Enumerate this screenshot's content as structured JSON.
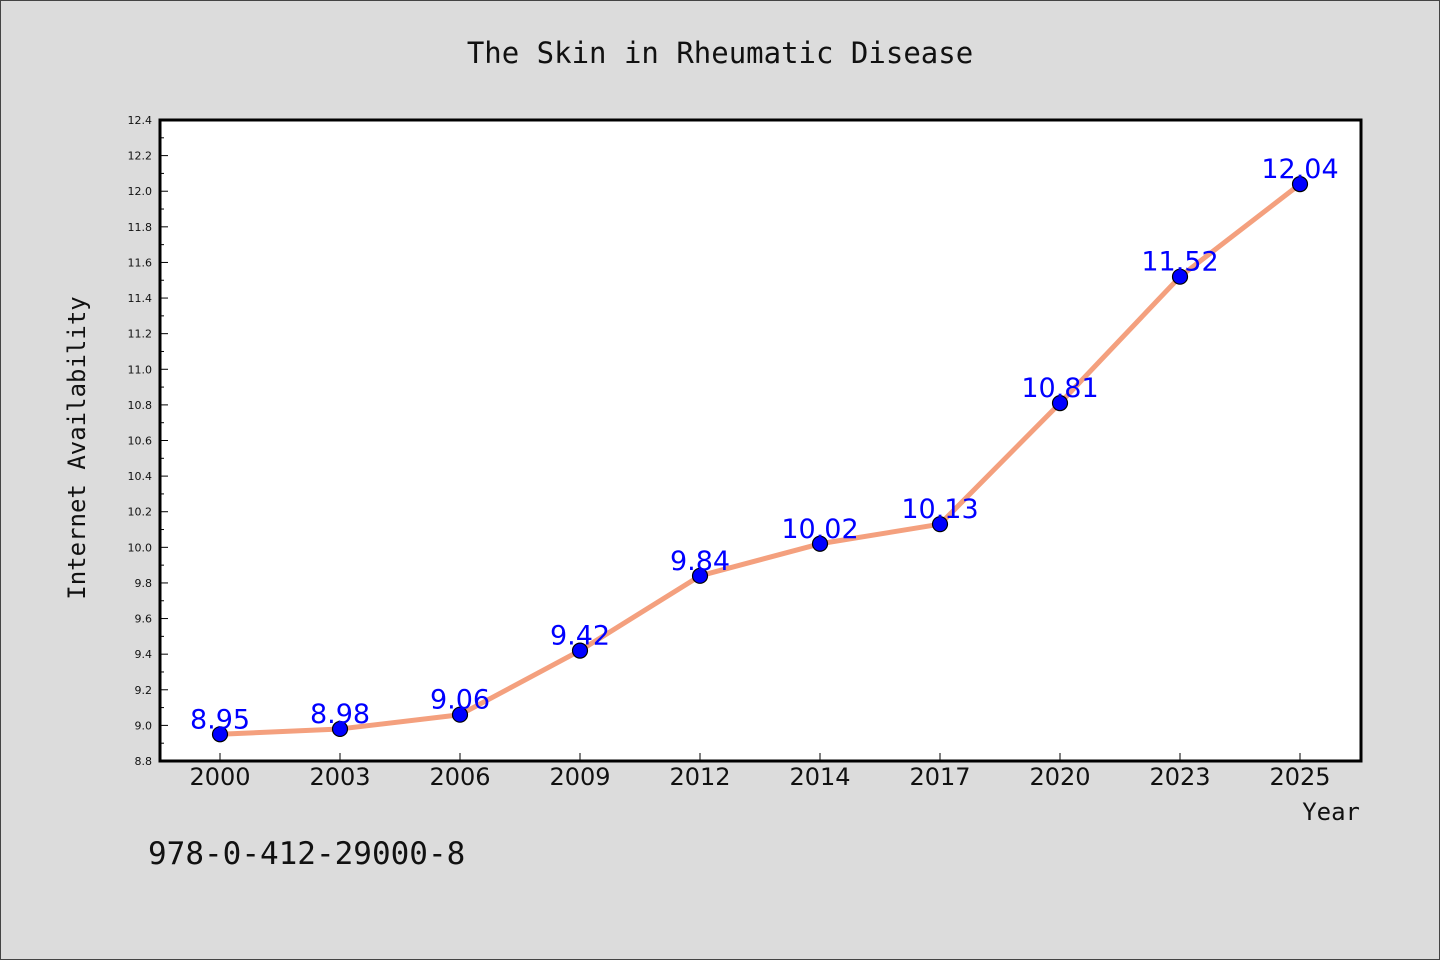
{
  "colors": {
    "background": "#dcdcdc",
    "plot_background": "#ffffff",
    "line": "#f4a07e",
    "marker": "#0000ff",
    "data_label": "#0000ff"
  },
  "footnote": "978-0-412-29000-8",
  "chart_data": {
    "type": "line",
    "title": "The Skin in Rheumatic Disease",
    "xlabel": "Year",
    "ylabel": "Internet Availability",
    "categories": [
      "2000",
      "2003",
      "2006",
      "2009",
      "2012",
      "2014",
      "2017",
      "2020",
      "2023",
      "2025"
    ],
    "series": [
      {
        "values": [
          8.95,
          8.98,
          9.06,
          9.42,
          9.84,
          10.02,
          10.13,
          10.81,
          11.52,
          12.04
        ],
        "data_labels": [
          "8.95",
          "8.98",
          "9.06",
          "9.42",
          "9.84",
          "10.02",
          "10.13",
          "10.81",
          "11.52",
          "12.04"
        ],
        "marker": "circle"
      }
    ],
    "ylim": [
      8.8,
      12.4
    ],
    "yticks": [
      "8.8",
      "9.0",
      "9.2",
      "9.4",
      "9.6",
      "9.8",
      "10.0",
      "10.2",
      "10.4",
      "10.6",
      "10.8",
      "11.0",
      "11.2",
      "11.4",
      "11.6",
      "11.8",
      "12.0",
      "12.2",
      "12.4"
    ],
    "grid": false,
    "legend": "none"
  }
}
